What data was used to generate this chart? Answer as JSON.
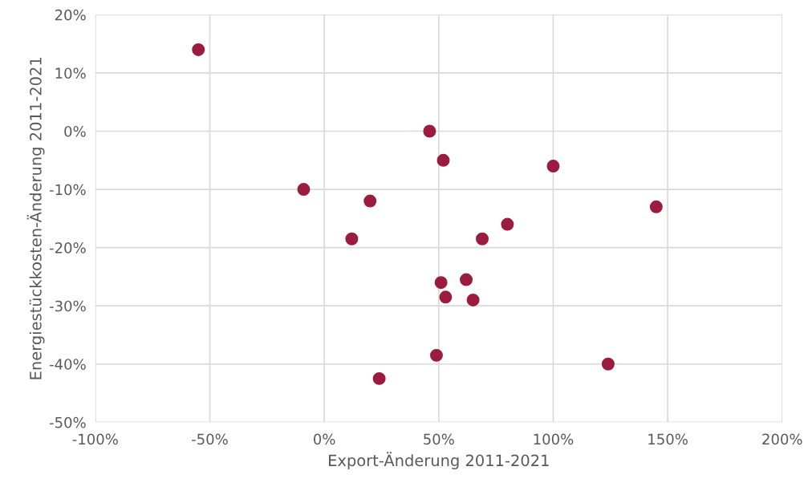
{
  "chart_data": {
    "type": "scatter",
    "xlabel": "Export-Änderung 2011-2021",
    "ylabel": "Energiestückkosten-Änderung 2011-2021",
    "x": [
      -55,
      46,
      52,
      100,
      -9,
      20,
      145,
      12,
      69,
      80,
      51,
      62,
      53,
      65,
      49,
      124,
      24
    ],
    "series": [
      {
        "color": "#9b1c3f",
        "values": [
          14,
          0,
          -5,
          -6,
          -10,
          -12,
          -13,
          -18.5,
          -18.5,
          -16,
          -26,
          -25.5,
          -28.5,
          -29,
          -38.5,
          -40,
          -42.5
        ]
      }
    ],
    "marker": "circle",
    "grid": true,
    "xlim": [
      -100,
      200
    ],
    "ylim": [
      -50,
      20
    ],
    "xticks": [
      {
        "value": -100,
        "label": "-100%"
      },
      {
        "value": -50,
        "label": "-50%"
      },
      {
        "value": 0,
        "label": "0%"
      },
      {
        "value": 50,
        "label": "50%"
      },
      {
        "value": 100,
        "label": "100%"
      },
      {
        "value": 150,
        "label": "150%"
      },
      {
        "value": 200,
        "label": "200%"
      }
    ],
    "yticks": [
      {
        "value": -50,
        "label": "-50%"
      },
      {
        "value": -40,
        "label": "-40%"
      },
      {
        "value": -30,
        "label": "-30%"
      },
      {
        "value": -20,
        "label": "-20%"
      },
      {
        "value": -10,
        "label": "-10%"
      },
      {
        "value": 0,
        "label": "0%"
      },
      {
        "value": 10,
        "label": "10%"
      },
      {
        "value": 20,
        "label": "20%"
      }
    ]
  }
}
